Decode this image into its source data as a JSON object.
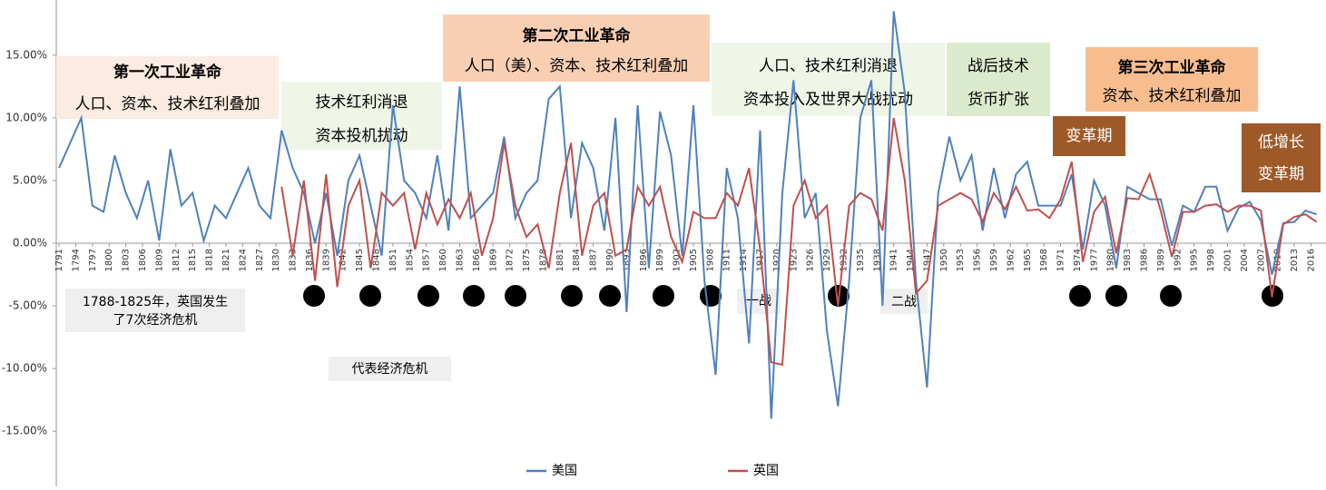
{
  "chart_data": {
    "type": "line",
    "xlim": [
      1790.5,
      2018.7
    ],
    "ylim": [
      -19.4,
      19.4
    ],
    "yticks": [
      {
        "value": -15,
        "label": "-15.00%"
      },
      {
        "value": -10,
        "label": "-10.00%"
      },
      {
        "value": -5,
        "label": "-5.00%"
      },
      {
        "value": 0,
        "label": "0.00%"
      },
      {
        "value": 5,
        "label": "5.00%"
      },
      {
        "value": 10,
        "label": "10.00%"
      },
      {
        "value": 15,
        "label": "15.00%"
      }
    ],
    "xticks": [
      1791,
      1794,
      1797,
      1800,
      1803,
      1806,
      1809,
      1812,
      1815,
      1818,
      1821,
      1824,
      1827,
      1830,
      1833,
      1836,
      1839,
      1842,
      1845,
      1848,
      1851,
      1854,
      1857,
      1860,
      1863,
      1866,
      1869,
      1872,
      1875,
      1878,
      1881,
      1884,
      1887,
      1890,
      1893,
      1896,
      1899,
      1902,
      1905,
      1908,
      1911,
      1914,
      1917,
      1920,
      1923,
      1926,
      1929,
      1932,
      1935,
      1938,
      1941,
      1944,
      1947,
      1950,
      1953,
      1956,
      1959,
      1962,
      1965,
      1968,
      1971,
      1974,
      1977,
      1980,
      1983,
      1986,
      1989,
      1992,
      1995,
      1998,
      2001,
      2004,
      2007,
      2010,
      2013,
      2016
    ],
    "x": [
      1791,
      1793,
      1795,
      1797,
      1799,
      1801,
      1803,
      1805,
      1807,
      1809,
      1811,
      1813,
      1815,
      1817,
      1819,
      1821,
      1823,
      1825,
      1827,
      1829,
      1831,
      1833,
      1835,
      1837,
      1839,
      1841,
      1843,
      1845,
      1847,
      1849,
      1851,
      1853,
      1855,
      1857,
      1859,
      1861,
      1863,
      1865,
      1867,
      1869,
      1871,
      1873,
      1875,
      1877,
      1879,
      1881,
      1883,
      1885,
      1887,
      1889,
      1891,
      1893,
      1895,
      1897,
      1899,
      1901,
      1903,
      1905,
      1907,
      1909,
      1911,
      1913,
      1915,
      1917,
      1919,
      1921,
      1923,
      1925,
      1927,
      1929,
      1931,
      1933,
      1935,
      1937,
      1939,
      1941,
      1943,
      1945,
      1947,
      1949,
      1951,
      1953,
      1955,
      1957,
      1959,
      1961,
      1963,
      1965,
      1967,
      1969,
      1971,
      1973,
      1975,
      1977,
      1979,
      1981,
      1983,
      1985,
      1987,
      1989,
      1991,
      1993,
      1995,
      1997,
      1999,
      2001,
      2003,
      2005,
      2007,
      2009,
      2011,
      2013,
      2015,
      2017
    ],
    "series": [
      {
        "name": "美国",
        "color": "#4f81bd",
        "values": [
          6,
          8,
          10,
          3,
          2.5,
          7,
          4,
          2,
          5,
          0.2,
          7.5,
          3,
          4,
          0.2,
          3,
          2,
          4,
          6,
          3,
          2,
          9,
          6,
          4,
          0,
          4,
          -1,
          5,
          7,
          3,
          -1,
          11,
          5,
          4,
          2,
          7,
          1,
          12.5,
          2,
          3,
          4,
          8.5,
          2,
          4,
          5,
          11.5,
          12.5,
          2,
          8,
          6,
          1,
          10,
          -5.5,
          11,
          -2,
          10.5,
          7,
          -1,
          11,
          -3,
          -10.5,
          6,
          2,
          -8,
          9,
          -14,
          4,
          13,
          2,
          4,
          -7,
          -13,
          -3,
          10,
          13,
          -5,
          18.5,
          12,
          -3,
          -11.5,
          4,
          8.5,
          5,
          7,
          1,
          6,
          2,
          5.5,
          6.5,
          3,
          3,
          3,
          5.5,
          -0.5,
          5,
          3,
          -2,
          4.5,
          4,
          3.5,
          3.5,
          -0.2,
          3,
          2.5,
          4.5,
          4.5,
          1,
          2.8,
          3.3,
          1.8,
          -2.5,
          1.6,
          1.7,
          2.6,
          2.3
        ]
      },
      {
        "name": "英国",
        "color": "#c0504d",
        "values": [
          null,
          null,
          null,
          null,
          null,
          null,
          null,
          null,
          null,
          null,
          null,
          null,
          null,
          null,
          null,
          null,
          null,
          null,
          null,
          null,
          4.5,
          -1,
          5,
          -3,
          5.5,
          -3.5,
          3,
          5,
          -2,
          4,
          3,
          4,
          -0.5,
          4,
          1.5,
          3.5,
          2,
          4,
          -1,
          2,
          8,
          3,
          0.5,
          1.5,
          -2,
          4,
          8,
          -1,
          3,
          4,
          -1,
          -0.5,
          4.5,
          3,
          4.5,
          0.5,
          -1.5,
          2.5,
          2,
          2,
          4,
          3,
          6,
          -0.5,
          -9.5,
          -9.7,
          3,
          5,
          2,
          3,
          -5,
          3,
          4,
          3.5,
          1,
          10,
          5,
          -4,
          -3,
          3,
          3.5,
          4,
          3.5,
          1.7,
          4,
          2.7,
          4.5,
          2.6,
          2.7,
          2,
          3.5,
          6.5,
          -1.5,
          2.5,
          3.7,
          -0.8,
          3.6,
          3.5,
          5.5,
          2.6,
          -1.1,
          2.5,
          2.5,
          3,
          3.1,
          2.5,
          3,
          3,
          2.6,
          -4.3,
          1.5,
          2.1,
          2.3,
          1.7
        ]
      }
    ],
    "annotations": [
      {
        "lines": [
          "第一次工业革命",
          "人口、资本、技术红利叠加"
        ]
      },
      {
        "lines": [
          "技术红利消退",
          "资本投机扰动"
        ]
      },
      {
        "lines": [
          "第二次工业革命",
          "人口（美）、资本、技术红利叠加"
        ]
      },
      {
        "lines": [
          "人口、技术红利消退",
          "资本投入及世界大战扰动"
        ]
      },
      {
        "lines": [
          "战后技术",
          "货币扩张"
        ]
      },
      {
        "lines": [
          "第三次工业革命",
          "资本、技术红利叠加"
        ]
      },
      {
        "lines": [
          "变革期"
        ]
      },
      {
        "lines": [
          "低增长",
          "变革期"
        ]
      },
      {
        "lines": [
          "1788-1825年，英国发生",
          "了7次经济危机"
        ]
      },
      {
        "lines": [
          "一战"
        ]
      },
      {
        "lines": [
          "二战"
        ]
      },
      {
        "lines": [
          "代表经济危机"
        ]
      }
    ]
  }
}
